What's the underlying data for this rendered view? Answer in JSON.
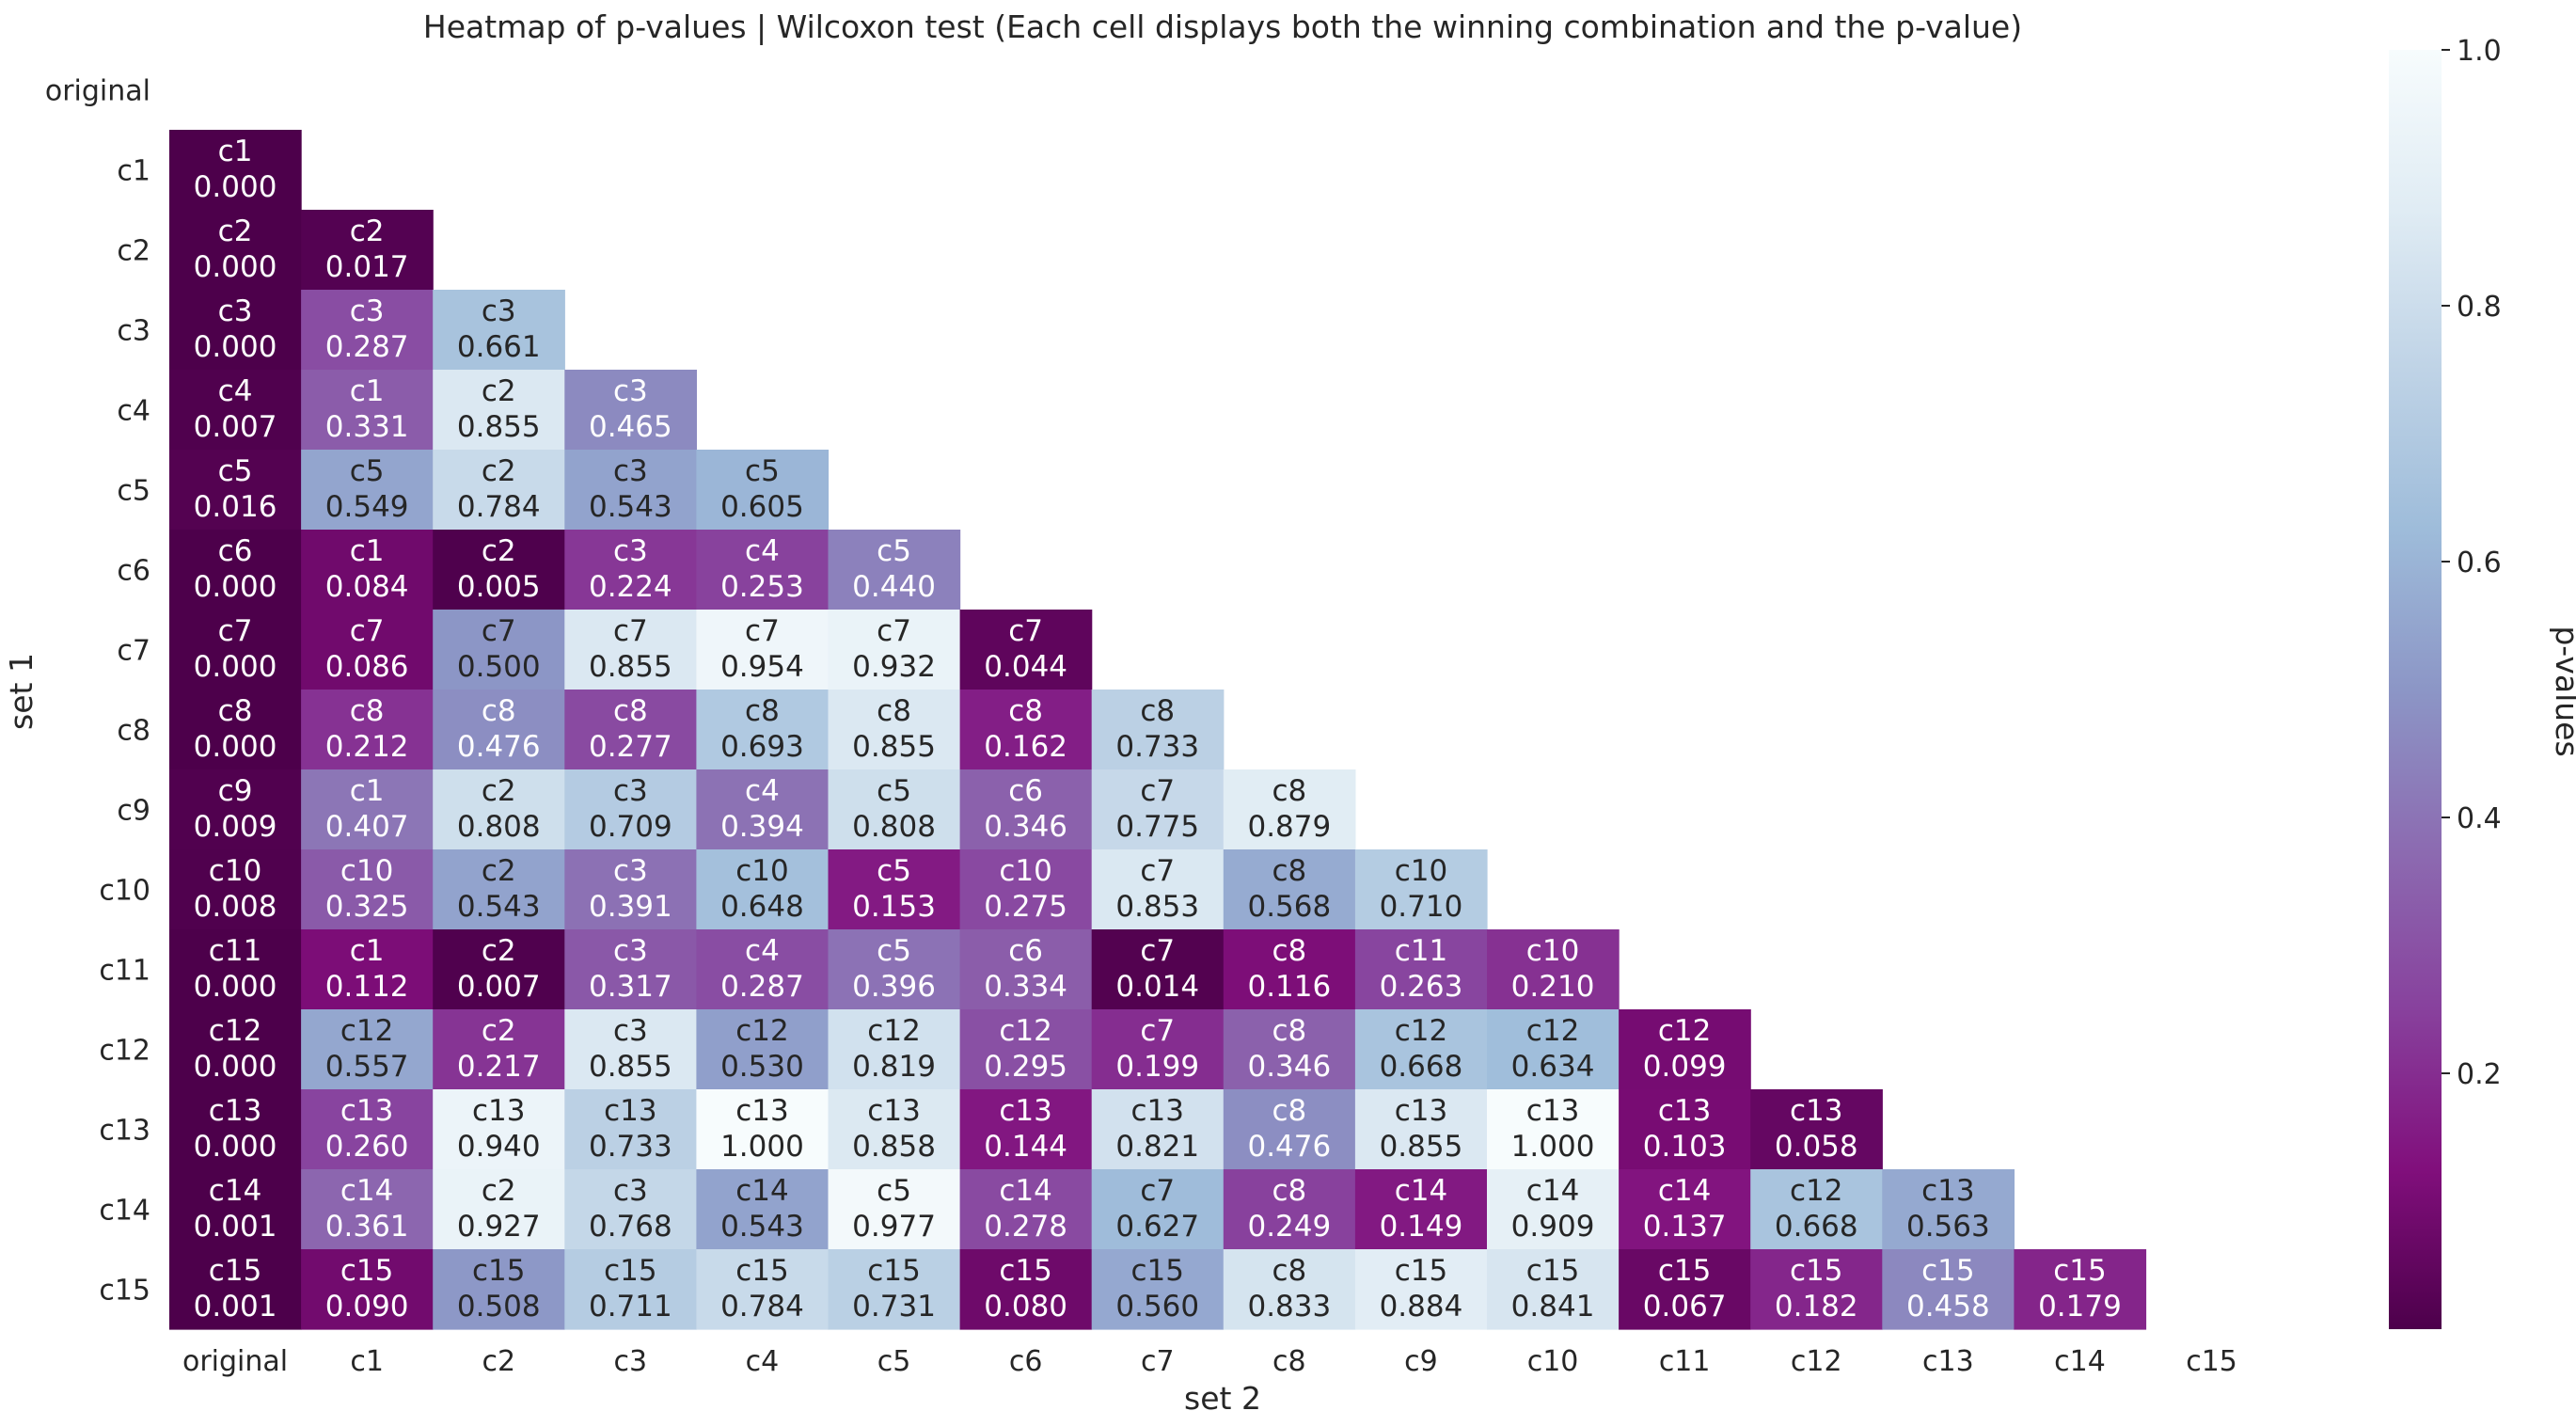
{
  "chart_data": {
    "type": "heatmap",
    "title": "Heatmap of p-values | Wilcoxon test (Each cell displays both the winning combination and the p-value)",
    "xlabel": "set 2",
    "ylabel": "set 1",
    "x_categories": [
      "original",
      "c1",
      "c2",
      "c3",
      "c4",
      "c5",
      "c6",
      "c7",
      "c8",
      "c9",
      "c10",
      "c11",
      "c12",
      "c13",
      "c14",
      "c15"
    ],
    "y_categories": [
      "original",
      "c1",
      "c2",
      "c3",
      "c4",
      "c5",
      "c6",
      "c7",
      "c8",
      "c9",
      "c10",
      "c11",
      "c12",
      "c13",
      "c14",
      "c15"
    ],
    "mask": "upper-triangle-and-diagonal",
    "colorbar": {
      "label": "p-values",
      "range": [
        0,
        1
      ],
      "ticks": [
        0.2,
        0.4,
        0.6,
        0.8,
        1.0
      ],
      "tick_labels": [
        "0.2",
        "0.4",
        "0.6",
        "0.8",
        "1.0"
      ],
      "colormap": "BuPu_r",
      "colors": [
        "#4d004b",
        "#810f7c",
        "#88419d",
        "#8c6bb1",
        "#8c96c6",
        "#9ebcda",
        "#bfd3e6",
        "#e0ecf4",
        "#f7fcfd"
      ]
    },
    "grid": false,
    "cells": [
      [],
      [
        [
          "c1",
          "0.000"
        ]
      ],
      [
        [
          "c2",
          "0.000"
        ],
        [
          "c2",
          "0.017"
        ]
      ],
      [
        [
          "c3",
          "0.000"
        ],
        [
          "c3",
          "0.287"
        ],
        [
          "c3",
          "0.661"
        ]
      ],
      [
        [
          "c4",
          "0.007"
        ],
        [
          "c1",
          "0.331"
        ],
        [
          "c2",
          "0.855"
        ],
        [
          "c3",
          "0.465"
        ]
      ],
      [
        [
          "c5",
          "0.016"
        ],
        [
          "c5",
          "0.549"
        ],
        [
          "c2",
          "0.784"
        ],
        [
          "c3",
          "0.543"
        ],
        [
          "c5",
          "0.605"
        ]
      ],
      [
        [
          "c6",
          "0.000"
        ],
        [
          "c1",
          "0.084"
        ],
        [
          "c2",
          "0.005"
        ],
        [
          "c3",
          "0.224"
        ],
        [
          "c4",
          "0.253"
        ],
        [
          "c5",
          "0.440"
        ]
      ],
      [
        [
          "c7",
          "0.000"
        ],
        [
          "c7",
          "0.086"
        ],
        [
          "c7",
          "0.500"
        ],
        [
          "c7",
          "0.855"
        ],
        [
          "c7",
          "0.954"
        ],
        [
          "c7",
          "0.932"
        ],
        [
          "c7",
          "0.044"
        ]
      ],
      [
        [
          "c8",
          "0.000"
        ],
        [
          "c8",
          "0.212"
        ],
        [
          "c8",
          "0.476"
        ],
        [
          "c8",
          "0.277"
        ],
        [
          "c8",
          "0.693"
        ],
        [
          "c8",
          "0.855"
        ],
        [
          "c8",
          "0.162"
        ],
        [
          "c8",
          "0.733"
        ]
      ],
      [
        [
          "c9",
          "0.009"
        ],
        [
          "c1",
          "0.407"
        ],
        [
          "c2",
          "0.808"
        ],
        [
          "c3",
          "0.709"
        ],
        [
          "c4",
          "0.394"
        ],
        [
          "c5",
          "0.808"
        ],
        [
          "c6",
          "0.346"
        ],
        [
          "c7",
          "0.775"
        ],
        [
          "c8",
          "0.879"
        ]
      ],
      [
        [
          "c10",
          "0.008"
        ],
        [
          "c10",
          "0.325"
        ],
        [
          "c2",
          "0.543"
        ],
        [
          "c3",
          "0.391"
        ],
        [
          "c10",
          "0.648"
        ],
        [
          "c5",
          "0.153"
        ],
        [
          "c10",
          "0.275"
        ],
        [
          "c7",
          "0.853"
        ],
        [
          "c8",
          "0.568"
        ],
        [
          "c10",
          "0.710"
        ]
      ],
      [
        [
          "c11",
          "0.000"
        ],
        [
          "c1",
          "0.112"
        ],
        [
          "c2",
          "0.007"
        ],
        [
          "c3",
          "0.317"
        ],
        [
          "c4",
          "0.287"
        ],
        [
          "c5",
          "0.396"
        ],
        [
          "c6",
          "0.334"
        ],
        [
          "c7",
          "0.014"
        ],
        [
          "c8",
          "0.116"
        ],
        [
          "c11",
          "0.263"
        ],
        [
          "c10",
          "0.210"
        ]
      ],
      [
        [
          "c12",
          "0.000"
        ],
        [
          "c12",
          "0.557"
        ],
        [
          "c2",
          "0.217"
        ],
        [
          "c3",
          "0.855"
        ],
        [
          "c12",
          "0.530"
        ],
        [
          "c12",
          "0.819"
        ],
        [
          "c12",
          "0.295"
        ],
        [
          "c7",
          "0.199"
        ],
        [
          "c8",
          "0.346"
        ],
        [
          "c12",
          "0.668"
        ],
        [
          "c12",
          "0.634"
        ],
        [
          "c12",
          "0.099"
        ]
      ],
      [
        [
          "c13",
          "0.000"
        ],
        [
          "c13",
          "0.260"
        ],
        [
          "c13",
          "0.940"
        ],
        [
          "c13",
          "0.733"
        ],
        [
          "c13",
          "1.000"
        ],
        [
          "c13",
          "0.858"
        ],
        [
          "c13",
          "0.144"
        ],
        [
          "c13",
          "0.821"
        ],
        [
          "c8",
          "0.476"
        ],
        [
          "c13",
          "0.855"
        ],
        [
          "c13",
          "1.000"
        ],
        [
          "c13",
          "0.103"
        ],
        [
          "c13",
          "0.058"
        ]
      ],
      [
        [
          "c14",
          "0.001"
        ],
        [
          "c14",
          "0.361"
        ],
        [
          "c2",
          "0.927"
        ],
        [
          "c3",
          "0.768"
        ],
        [
          "c14",
          "0.543"
        ],
        [
          "c5",
          "0.977"
        ],
        [
          "c14",
          "0.278"
        ],
        [
          "c7",
          "0.627"
        ],
        [
          "c8",
          "0.249"
        ],
        [
          "c14",
          "0.149"
        ],
        [
          "c14",
          "0.909"
        ],
        [
          "c14",
          "0.137"
        ],
        [
          "c12",
          "0.668"
        ],
        [
          "c13",
          "0.563"
        ]
      ],
      [
        [
          "c15",
          "0.001"
        ],
        [
          "c15",
          "0.090"
        ],
        [
          "c15",
          "0.508"
        ],
        [
          "c15",
          "0.711"
        ],
        [
          "c15",
          "0.784"
        ],
        [
          "c15",
          "0.731"
        ],
        [
          "c15",
          "0.080"
        ],
        [
          "c15",
          "0.560"
        ],
        [
          "c8",
          "0.833"
        ],
        [
          "c15",
          "0.884"
        ],
        [
          "c15",
          "0.841"
        ],
        [
          "c15",
          "0.067"
        ],
        [
          "c15",
          "0.182"
        ],
        [
          "c15",
          "0.458"
        ],
        [
          "c15",
          "0.179"
        ]
      ]
    ]
  }
}
